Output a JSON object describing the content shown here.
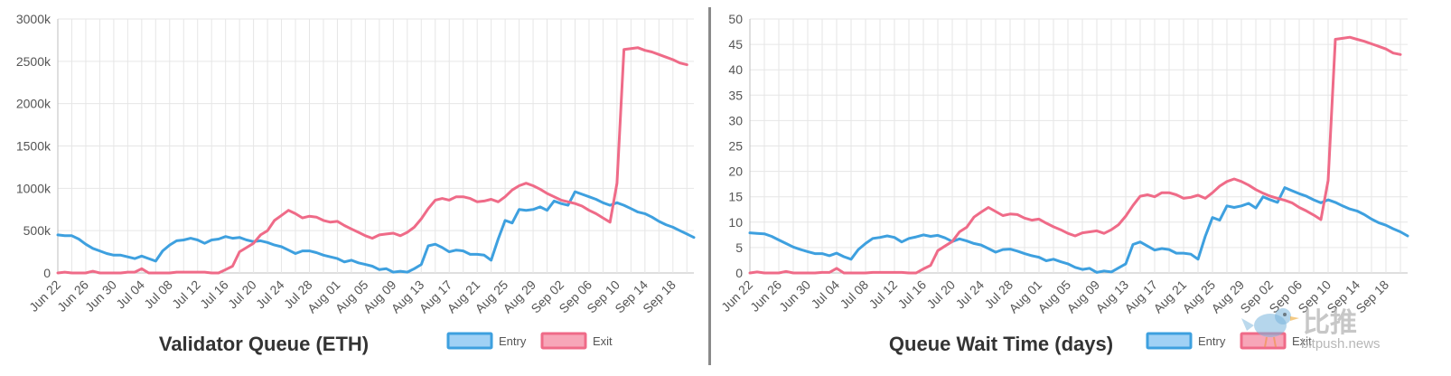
{
  "colors": {
    "entry_line": "#3ea0df",
    "entry_fill": "#a0d1f5",
    "exit_line": "#ef6b88",
    "exit_fill": "#f7a6b8",
    "grid": "#e6e6e6",
    "axis": "#bfbfbf"
  },
  "dates": [
    "Jun 22",
    "Jun 26",
    "Jun 30",
    "Jul 04",
    "Jul 08",
    "Jul 12",
    "Jul 16",
    "Jul 20",
    "Jul 24",
    "Jul 28",
    "Aug 01",
    "Aug 05",
    "Aug 09",
    "Aug 13",
    "Aug 17",
    "Aug 21",
    "Aug 25",
    "Aug 29",
    "Sep 02",
    "Sep 06",
    "Sep 10",
    "Sep 14",
    "Sep 18"
  ],
  "chart_data": [
    {
      "type": "line",
      "title": "Validator Queue (ETH)",
      "xlabel": "",
      "ylabel": "",
      "ylim": [
        0,
        3000
      ],
      "y_ticks": [
        "0",
        "500k",
        "1000k",
        "1500k",
        "2000k",
        "2500k",
        "3000k"
      ],
      "x_ticks": [
        "Jun 22",
        "Jun 26",
        "Jun 30",
        "Jul 04",
        "Jul 08",
        "Jul 12",
        "Jul 16",
        "Jul 20",
        "Jul 24",
        "Jul 28",
        "Aug 01",
        "Aug 05",
        "Aug 09",
        "Aug 13",
        "Aug 17",
        "Aug 21",
        "Aug 25",
        "Aug 29",
        "Sep 02",
        "Sep 06",
        "Sep 10",
        "Sep 14",
        "Sep 18"
      ],
      "grid": true,
      "legend": "bottom",
      "series": [
        {
          "name": "Entry",
          "values": [
            450,
            440,
            440,
            400,
            340,
            290,
            260,
            230,
            210,
            210,
            190,
            170,
            200,
            170,
            140,
            260,
            330,
            380,
            390,
            410,
            390,
            350,
            390,
            400,
            430,
            410,
            420,
            390,
            370,
            380,
            360,
            330,
            310,
            270,
            230,
            260,
            260,
            240,
            210,
            190,
            170,
            130,
            150,
            120,
            100,
            80,
            40,
            50,
            10,
            20,
            10,
            50,
            100,
            320,
            340,
            300,
            250,
            270,
            260,
            220,
            220,
            210,
            150,
            400,
            620,
            590,
            750,
            740,
            750,
            780,
            740,
            850,
            820,
            800,
            960,
            930,
            900,
            870,
            830,
            800,
            830,
            800,
            760,
            720,
            700,
            660,
            610,
            570,
            540,
            500,
            460,
            420
          ]
        },
        {
          "name": "Exit",
          "values": [
            0,
            10,
            0,
            0,
            0,
            20,
            0,
            0,
            0,
            0,
            10,
            10,
            50,
            0,
            0,
            0,
            0,
            10,
            10,
            10,
            10,
            10,
            0,
            0,
            40,
            80,
            250,
            300,
            350,
            450,
            500,
            620,
            680,
            740,
            700,
            650,
            670,
            660,
            620,
            600,
            610,
            560,
            520,
            480,
            440,
            410,
            450,
            460,
            470,
            440,
            480,
            540,
            640,
            760,
            860,
            880,
            860,
            900,
            900,
            880,
            840,
            850,
            870,
            840,
            900,
            980,
            1030,
            1060,
            1030,
            990,
            940,
            900,
            860,
            840,
            820,
            790,
            740,
            700,
            650,
            600,
            1060,
            2640,
            2650,
            2660,
            2630,
            2610,
            2580,
            2550,
            2520,
            2480,
            2460
          ]
        }
      ]
    },
    {
      "type": "line",
      "title": "Queue Wait Time (days)",
      "xlabel": "",
      "ylabel": "",
      "ylim": [
        0,
        50
      ],
      "y_ticks": [
        "0",
        "5",
        "10",
        "15",
        "20",
        "25",
        "30",
        "35",
        "40",
        "45",
        "50"
      ],
      "x_ticks": [
        "Jun 22",
        "Jun 26",
        "Jun 30",
        "Jul 04",
        "Jul 08",
        "Jul 12",
        "Jul 16",
        "Jul 20",
        "Jul 24",
        "Jul 28",
        "Aug 01",
        "Aug 05",
        "Aug 09",
        "Aug 13",
        "Aug 17",
        "Aug 21",
        "Aug 25",
        "Aug 29",
        "Sep 02",
        "Sep 06",
        "Sep 10",
        "Sep 14",
        "Sep 18"
      ],
      "grid": true,
      "legend": "bottom",
      "series": [
        {
          "name": "Entry",
          "values": [
            7.9,
            7.8,
            7.7,
            7.2,
            6.5,
            5.8,
            5.1,
            4.6,
            4.2,
            3.8,
            3.8,
            3.4,
            3.9,
            3.2,
            2.7,
            4.6,
            5.8,
            6.8,
            7.0,
            7.3,
            7.0,
            6.1,
            6.8,
            7.1,
            7.5,
            7.2,
            7.4,
            6.9,
            6.2,
            6.7,
            6.3,
            5.8,
            5.5,
            4.8,
            4.1,
            4.6,
            4.7,
            4.3,
            3.8,
            3.4,
            3.1,
            2.4,
            2.7,
            2.2,
            1.8,
            1.1,
            0.7,
            0.9,
            0.1,
            0.4,
            0.2,
            1.0,
            1.8,
            5.6,
            6.1,
            5.3,
            4.5,
            4.8,
            4.6,
            3.9,
            3.9,
            3.7,
            2.7,
            7.2,
            10.9,
            10.4,
            13.2,
            12.9,
            13.2,
            13.7,
            12.8,
            15.0,
            14.4,
            13.9,
            16.8,
            16.2,
            15.6,
            15.1,
            14.4,
            13.8,
            14.4,
            13.9,
            13.2,
            12.6,
            12.2,
            11.5,
            10.6,
            9.9,
            9.4,
            8.7,
            8.1,
            7.3
          ]
        },
        {
          "name": "Exit",
          "values": [
            0,
            0.2,
            0,
            0,
            0,
            0.3,
            0,
            0,
            0,
            0,
            0.1,
            0.1,
            0.9,
            0,
            0,
            0,
            0,
            0.1,
            0.1,
            0.1,
            0.1,
            0.1,
            0,
            0,
            0.8,
            1.5,
            4.4,
            5.3,
            6.2,
            8.1,
            9.0,
            11.0,
            12.0,
            12.9,
            12.1,
            11.3,
            11.6,
            11.5,
            10.8,
            10.4,
            10.6,
            9.8,
            9.1,
            8.5,
            7.8,
            7.3,
            7.9,
            8.1,
            8.3,
            7.8,
            8.5,
            9.5,
            11.2,
            13.3,
            15.1,
            15.4,
            15.0,
            15.8,
            15.8,
            15.4,
            14.7,
            14.9,
            15.3,
            14.7,
            15.8,
            17.1,
            18.0,
            18.5,
            18.0,
            17.3,
            16.4,
            15.7,
            15.1,
            14.7,
            14.3,
            13.8,
            12.9,
            12.2,
            11.4,
            10.5,
            18.2,
            46.0,
            46.2,
            46.4,
            46.0,
            45.6,
            45.1,
            44.6,
            44.1,
            43.3,
            43.0
          ]
        }
      ]
    }
  ],
  "watermark": {
    "brand": "比推",
    "url": "bitpush.news"
  }
}
